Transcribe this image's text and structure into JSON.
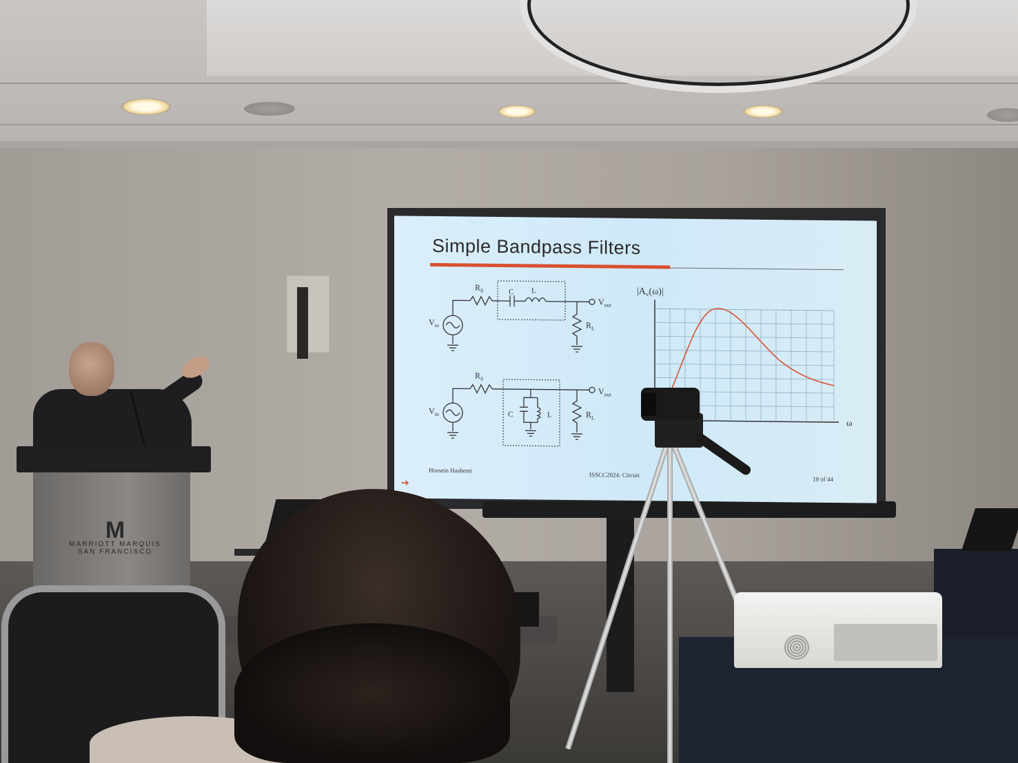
{
  "slide": {
    "title": "Simple Bandpass Filters",
    "footer_left": "Hossein Hashemi",
    "footer_center": "ISSCC2024: Circuit",
    "footer_right": "19 of 44",
    "circuit1": {
      "source": "V",
      "source_sub": "in",
      "rs": "R",
      "rs_sub": "S",
      "c": "C",
      "l": "L",
      "out": "V",
      "out_sub": "out",
      "rl": "R",
      "rl_sub": "L"
    },
    "circuit2": {
      "source": "V",
      "source_sub": "in",
      "rs": "R",
      "rs_sub": "S",
      "c": "C",
      "l": "L",
      "out": "V",
      "out_sub": "out",
      "rl": "R",
      "rl_sub": "L"
    },
    "plot": {
      "ylabel_main": "|A",
      "ylabel_sub": "v",
      "ylabel_rest": "(ω)|",
      "xlabel": "ω",
      "curve_color": "#d9502f",
      "accent": "#d9502f"
    }
  },
  "podium": {
    "brand_mark": "M",
    "line1": "MARRIOTT MARQUIS",
    "line2": "SAN FRANCISCO"
  }
}
